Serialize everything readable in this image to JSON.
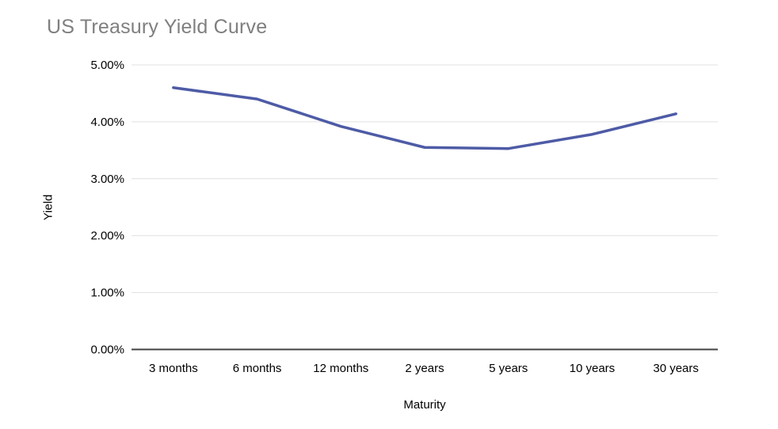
{
  "page": {
    "background": "#ffffff"
  },
  "chart_data": {
    "type": "line",
    "title": "US Treasury Yield Curve",
    "xlabel": "Maturity",
    "ylabel": "Yield",
    "categories": [
      "3 months",
      "6 months",
      "12 months",
      "2 years",
      "5 years",
      "10 years",
      "30 years"
    ],
    "series": [
      {
        "name": "Yield",
        "color": "#4e5ba6",
        "values": [
          4.6,
          4.4,
          3.92,
          3.55,
          3.53,
          3.78,
          4.14
        ]
      }
    ],
    "y_axis": {
      "min": 0,
      "max": 5,
      "tick_step": 1,
      "tick_labels": [
        "0.00%",
        "1.00%",
        "2.00%",
        "3.00%",
        "4.00%",
        "5.00%"
      ]
    },
    "grid": true,
    "legend": "none",
    "colors": {
      "title": "#7f7f7f",
      "tick_label": "#000000",
      "gridline": "#e0e0e0",
      "axis_line": "#424242"
    }
  }
}
